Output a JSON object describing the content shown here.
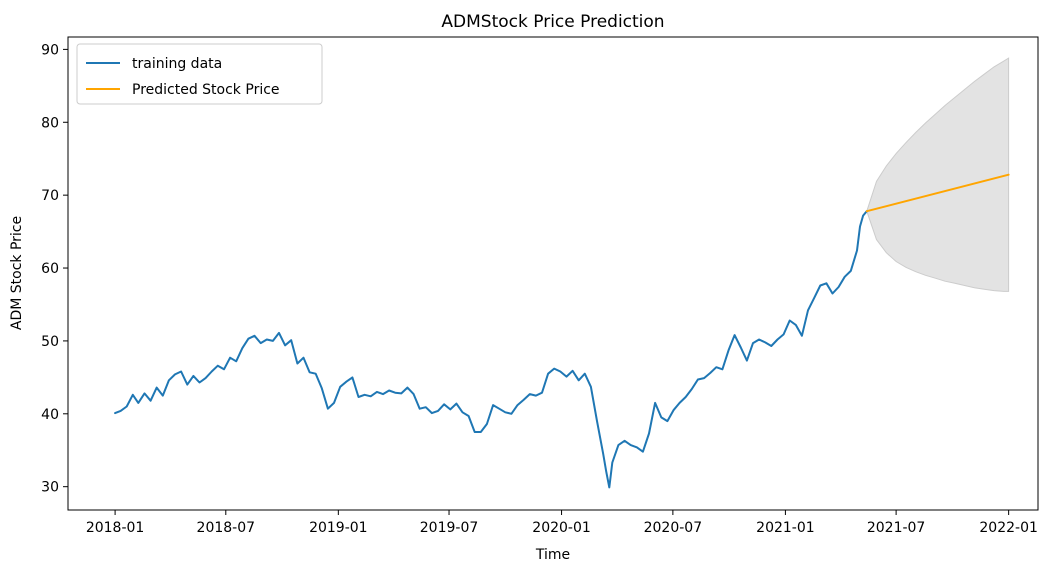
{
  "chart_data": {
    "type": "line",
    "title": "ADMStock Price Prediction",
    "xlabel": "Time",
    "ylabel": "ADM Stock Price",
    "x_type": "date",
    "xlim": [
      "2017-10-16",
      "2022-02-18"
    ],
    "ylim": [
      26.8,
      91.7
    ],
    "x_ticks": [
      "2018-01",
      "2018-07",
      "2019-01",
      "2019-07",
      "2020-01",
      "2020-07",
      "2021-01",
      "2021-07",
      "2022-01"
    ],
    "y_ticks": [
      30,
      40,
      50,
      60,
      70,
      80,
      90
    ],
    "grid": false,
    "legend": {
      "location": "upper left",
      "entries": [
        "training data",
        "Predicted Stock Price"
      ]
    },
    "colors": {
      "training": "#1f77b4",
      "predicted": "#ffa500",
      "confidence_band": "#cccccc"
    },
    "series": [
      {
        "name": "training data",
        "kind": "line",
        "points": [
          [
            "2018-01-01",
            40.1
          ],
          [
            "2018-01-10",
            40.4
          ],
          [
            "2018-01-20",
            41.0
          ],
          [
            "2018-01-30",
            42.6
          ],
          [
            "2018-02-08",
            41.5
          ],
          [
            "2018-02-18",
            42.8
          ],
          [
            "2018-02-28",
            41.8
          ],
          [
            "2018-03-10",
            43.6
          ],
          [
            "2018-03-20",
            42.5
          ],
          [
            "2018-03-30",
            44.6
          ],
          [
            "2018-04-09",
            45.4
          ],
          [
            "2018-04-19",
            45.8
          ],
          [
            "2018-04-29",
            44.0
          ],
          [
            "2018-05-09",
            45.2
          ],
          [
            "2018-05-19",
            44.3
          ],
          [
            "2018-05-29",
            44.9
          ],
          [
            "2018-06-08",
            45.8
          ],
          [
            "2018-06-18",
            46.6
          ],
          [
            "2018-06-28",
            46.1
          ],
          [
            "2018-07-08",
            47.7
          ],
          [
            "2018-07-18",
            47.2
          ],
          [
            "2018-07-28",
            49.0
          ],
          [
            "2018-08-07",
            50.3
          ],
          [
            "2018-08-17",
            50.7
          ],
          [
            "2018-08-27",
            49.7
          ],
          [
            "2018-09-06",
            50.2
          ],
          [
            "2018-09-16",
            50.0
          ],
          [
            "2018-09-26",
            51.1
          ],
          [
            "2018-10-06",
            49.4
          ],
          [
            "2018-10-16",
            50.1
          ],
          [
            "2018-10-26",
            46.9
          ],
          [
            "2018-11-05",
            47.7
          ],
          [
            "2018-11-15",
            45.7
          ],
          [
            "2018-11-25",
            45.5
          ],
          [
            "2018-12-05",
            43.5
          ],
          [
            "2018-12-15",
            40.7
          ],
          [
            "2018-12-25",
            41.5
          ],
          [
            "2019-01-04",
            43.7
          ],
          [
            "2019-01-14",
            44.4
          ],
          [
            "2019-01-24",
            45.0
          ],
          [
            "2019-02-03",
            42.3
          ],
          [
            "2019-02-13",
            42.6
          ],
          [
            "2019-02-23",
            42.4
          ],
          [
            "2019-03-05",
            43.0
          ],
          [
            "2019-03-15",
            42.7
          ],
          [
            "2019-03-25",
            43.2
          ],
          [
            "2019-04-04",
            42.9
          ],
          [
            "2019-04-14",
            42.8
          ],
          [
            "2019-04-24",
            43.6
          ],
          [
            "2019-05-04",
            42.7
          ],
          [
            "2019-05-14",
            40.7
          ],
          [
            "2019-05-24",
            40.9
          ],
          [
            "2019-06-03",
            40.1
          ],
          [
            "2019-06-13",
            40.4
          ],
          [
            "2019-06-23",
            41.3
          ],
          [
            "2019-07-03",
            40.6
          ],
          [
            "2019-07-13",
            41.4
          ],
          [
            "2019-07-23",
            40.2
          ],
          [
            "2019-08-02",
            39.7
          ],
          [
            "2019-08-12",
            37.5
          ],
          [
            "2019-08-22",
            37.5
          ],
          [
            "2019-09-01",
            38.6
          ],
          [
            "2019-09-11",
            41.2
          ],
          [
            "2019-09-21",
            40.7
          ],
          [
            "2019-10-01",
            40.2
          ],
          [
            "2019-10-11",
            40.0
          ],
          [
            "2019-10-21",
            41.2
          ],
          [
            "2019-10-31",
            41.9
          ],
          [
            "2019-11-10",
            42.7
          ],
          [
            "2019-11-20",
            42.5
          ],
          [
            "2019-11-30",
            42.9
          ],
          [
            "2019-12-10",
            45.5
          ],
          [
            "2019-12-20",
            46.2
          ],
          [
            "2019-12-30",
            45.8
          ],
          [
            "2020-01-09",
            45.1
          ],
          [
            "2020-01-19",
            45.9
          ],
          [
            "2020-01-29",
            44.6
          ],
          [
            "2020-02-08",
            45.5
          ],
          [
            "2020-02-18",
            43.7
          ],
          [
            "2020-02-28",
            39.0
          ],
          [
            "2020-03-09",
            34.5
          ],
          [
            "2020-03-14",
            32.1
          ],
          [
            "2020-03-19",
            29.9
          ],
          [
            "2020-03-24",
            33.3
          ],
          [
            "2020-04-03",
            35.7
          ],
          [
            "2020-04-13",
            36.3
          ],
          [
            "2020-04-23",
            35.7
          ],
          [
            "2020-05-03",
            35.4
          ],
          [
            "2020-05-13",
            34.8
          ],
          [
            "2020-05-23",
            37.3
          ],
          [
            "2020-06-02",
            41.5
          ],
          [
            "2020-06-12",
            39.5
          ],
          [
            "2020-06-22",
            39.0
          ],
          [
            "2020-07-02",
            40.5
          ],
          [
            "2020-07-12",
            41.5
          ],
          [
            "2020-07-22",
            42.3
          ],
          [
            "2020-08-01",
            43.4
          ],
          [
            "2020-08-11",
            44.7
          ],
          [
            "2020-08-21",
            44.9
          ],
          [
            "2020-08-31",
            45.6
          ],
          [
            "2020-09-10",
            46.4
          ],
          [
            "2020-09-20",
            46.1
          ],
          [
            "2020-09-30",
            48.7
          ],
          [
            "2020-10-10",
            50.8
          ],
          [
            "2020-10-20",
            49.1
          ],
          [
            "2020-10-30",
            47.3
          ],
          [
            "2020-11-09",
            49.7
          ],
          [
            "2020-11-19",
            50.2
          ],
          [
            "2020-11-29",
            49.8
          ],
          [
            "2020-12-09",
            49.3
          ],
          [
            "2020-12-19",
            50.2
          ],
          [
            "2020-12-29",
            50.9
          ],
          [
            "2021-01-08",
            52.8
          ],
          [
            "2021-01-18",
            52.2
          ],
          [
            "2021-01-28",
            50.7
          ],
          [
            "2021-02-07",
            54.2
          ],
          [
            "2021-02-17",
            55.9
          ],
          [
            "2021-02-27",
            57.6
          ],
          [
            "2021-03-09",
            57.9
          ],
          [
            "2021-03-19",
            56.5
          ],
          [
            "2021-03-29",
            57.4
          ],
          [
            "2021-04-08",
            58.8
          ],
          [
            "2021-04-18",
            59.6
          ],
          [
            "2021-04-28",
            62.4
          ],
          [
            "2021-05-03",
            65.7
          ],
          [
            "2021-05-08",
            67.2
          ],
          [
            "2021-05-14",
            67.8
          ]
        ]
      },
      {
        "name": "Predicted Stock Price",
        "kind": "line",
        "points": [
          [
            "2021-05-14",
            67.8
          ],
          [
            "2022-01-01",
            72.8
          ]
        ]
      },
      {
        "name": "confidence interval",
        "kind": "band",
        "x": [
          "2021-05-14",
          "2021-05-30",
          "2021-06-15",
          "2021-07-01",
          "2021-07-17",
          "2021-08-02",
          "2021-08-18",
          "2021-09-03",
          "2021-09-19",
          "2021-10-05",
          "2021-10-21",
          "2021-11-06",
          "2021-11-22",
          "2021-12-08",
          "2021-12-24",
          "2022-01-01"
        ],
        "upper": [
          67.8,
          71.9,
          74.0,
          75.7,
          77.2,
          78.6,
          79.9,
          81.1,
          82.3,
          83.4,
          84.5,
          85.6,
          86.6,
          87.6,
          88.4,
          88.8
        ],
        "lower": [
          67.8,
          63.9,
          62.1,
          60.9,
          60.1,
          59.5,
          59.0,
          58.6,
          58.2,
          57.9,
          57.6,
          57.3,
          57.1,
          56.9,
          56.8,
          56.8
        ]
      }
    ]
  }
}
